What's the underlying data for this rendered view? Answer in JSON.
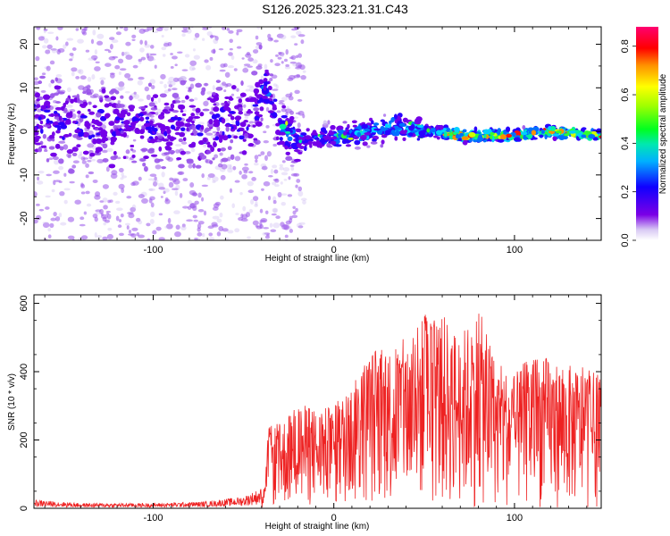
{
  "title": "S126.2025.323.21.31.C43",
  "chart_data": [
    {
      "type": "heatmap",
      "name": "spectrogram",
      "xlabel": "Height of straight line (km)",
      "ylabel": "Frequency (Hz)",
      "xlim": [
        -166,
        148
      ],
      "ylim": [
        -25,
        24
      ],
      "xticks": [
        -100,
        0,
        100
      ],
      "yticks": [
        -20,
        -10,
        0,
        10,
        20
      ],
      "grid": false,
      "ridge": {
        "x": [
          -160,
          -130,
          -110,
          -90,
          -75,
          -60,
          -45,
          -38,
          -30,
          -20,
          -10,
          0,
          10,
          20,
          30,
          40,
          50,
          60,
          70,
          80,
          100,
          120,
          148
        ],
        "y": [
          3,
          1,
          1,
          1,
          1,
          1,
          3,
          10,
          1,
          -2,
          -2,
          -1,
          -1,
          0,
          1,
          1,
          0,
          0,
          -1,
          -1,
          -1,
          0,
          -1
        ]
      },
      "colorbar": {
        "label": "Normalized spectral amplitude",
        "range": [
          0,
          0.88
        ],
        "ticks": [
          0.0,
          0.2,
          0.4,
          0.6,
          0.8
        ],
        "tick_labels": [
          "0.0",
          "0.2",
          "0.4",
          "0.6",
          "0.8"
        ]
      }
    },
    {
      "type": "line",
      "name": "snr",
      "xlabel": "Height of straight line (km)",
      "ylabel": "SNR (10 * v/v)",
      "xlim": [
        -166,
        148
      ],
      "ylim": [
        0,
        625
      ],
      "xticks": [
        -100,
        0,
        100
      ],
      "yticks": [
        0,
        200,
        400,
        600
      ],
      "color": "#ee2222",
      "grid": false,
      "envelope": {
        "x": [
          -166,
          -140,
          -100,
          -70,
          -50,
          -40,
          -36,
          -30,
          -20,
          -10,
          0,
          10,
          20,
          30,
          40,
          50,
          60,
          70,
          80,
          90,
          100,
          110,
          120,
          130,
          140,
          148
        ],
        "y": [
          25,
          15,
          15,
          20,
          35,
          60,
          240,
          250,
          310,
          290,
          300,
          370,
          470,
          480,
          500,
          570,
          570,
          510,
          590,
          430,
          390,
          460,
          440,
          420,
          410,
          390
        ]
      }
    }
  ]
}
